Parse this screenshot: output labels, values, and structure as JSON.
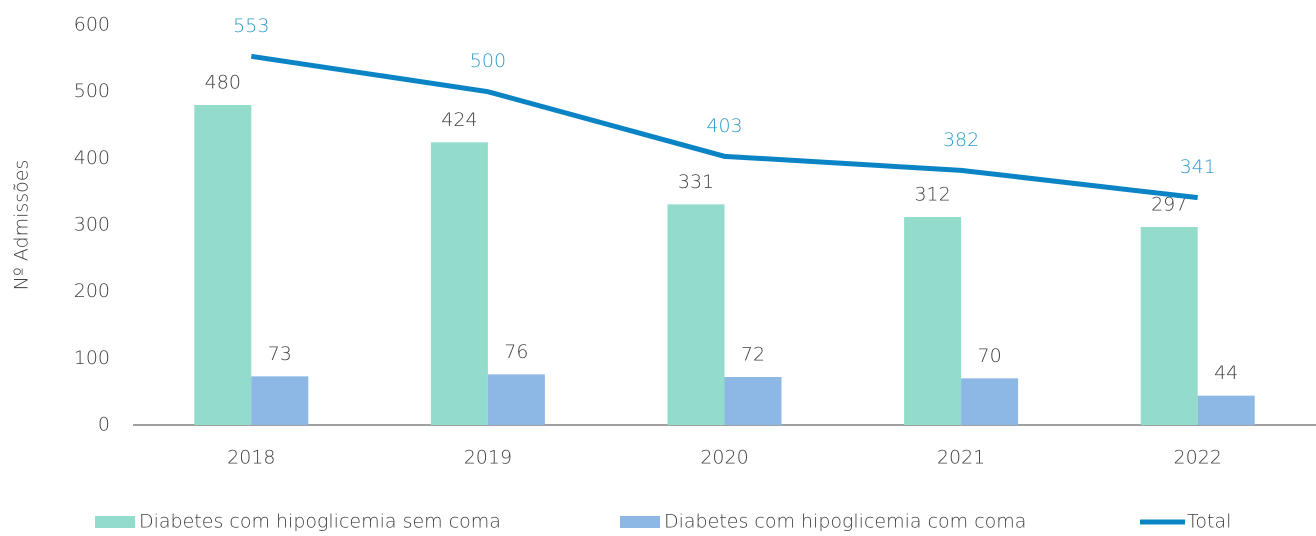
{
  "chart_data": {
    "type": "bar",
    "y_label": "Nº Admissões",
    "categories": [
      "2018",
      "2019",
      "2020",
      "2021",
      "2022"
    ],
    "series": [
      {
        "name": "Diabetes com hipoglicemia sem coma",
        "color": "#93dccb",
        "values": [
          480,
          424,
          331,
          312,
          297
        ]
      },
      {
        "name": "Diabetes com hipoglicemia com coma",
        "color": "#8db8e6",
        "values": [
          73,
          76,
          72,
          70,
          44
        ]
      },
      {
        "name": "Total",
        "type": "line",
        "color": "#0b84c6",
        "label_color": "#2e9acb",
        "values": [
          553,
          500,
          403,
          382,
          341
        ]
      }
    ],
    "ylim": [
      0,
      600
    ],
    "yticks": [
      0,
      100,
      200,
      300,
      400,
      500,
      600
    ],
    "legend": "bottom"
  }
}
